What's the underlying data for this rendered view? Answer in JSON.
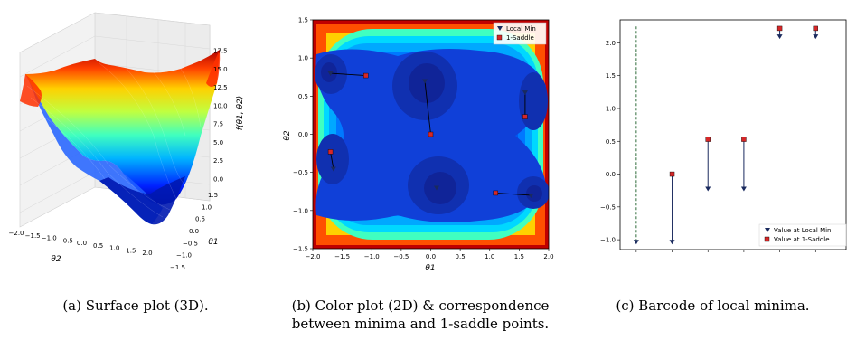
{
  "colors": {
    "minimum": "#1a2a5e",
    "saddle": "#d62728",
    "dashed": "#2e6b3a"
  },
  "captions": {
    "a": "(a) Surface plot (3D).",
    "b_line1": "(b) Color plot (2D) & correspondence",
    "b_line2": "between minima and 1-saddle points.",
    "c": "(c) Barcode of local minima."
  },
  "chart_data": [
    {
      "id": "a",
      "type": "surface",
      "title": "",
      "xlabel": "θ2",
      "ylabel": "θ1",
      "zlabel": "f(θ1, θ2)",
      "x_ticks": [
        "−2.0",
        "−1.5",
        "−1.0",
        "−0.5",
        "0.0",
        "0.5",
        "1.0",
        "1.5",
        "2.0"
      ],
      "y_ticks": [
        "−1.5",
        "−1.0",
        "−0.5",
        "0.0",
        "0.5",
        "1.0",
        "1.5"
      ],
      "z_ticks": [
        "0.0",
        "2.5",
        "5.0",
        "7.5",
        "10.0",
        "12.5",
        "15.0",
        "17.5"
      ],
      "zlim": [
        0,
        17.5
      ],
      "colormap": "jet"
    },
    {
      "id": "b",
      "type": "heatmap",
      "title": "",
      "xlabel": "θ1",
      "ylabel": "θ2",
      "xlim": [
        -2.0,
        2.0
      ],
      "ylim": [
        -1.5,
        1.5
      ],
      "x_ticks": [
        "−2.0",
        "−1.5",
        "−1.0",
        "−0.5",
        "0.0",
        "0.5",
        "1.0",
        "1.5",
        "2.0"
      ],
      "y_ticks": [
        "−1.5",
        "−1.0",
        "−0.5",
        "0.0",
        "0.5",
        "1.0",
        "1.5"
      ],
      "colormap": "jet",
      "legend": {
        "position": "top-right",
        "entries": [
          "Local Min",
          "1-Saddle"
        ]
      },
      "local_minima": [
        [
          -1.7,
          0.8
        ],
        [
          -0.1,
          0.7
        ],
        [
          1.6,
          0.55
        ],
        [
          -1.65,
          -0.45
        ],
        [
          0.1,
          -0.7
        ],
        [
          1.7,
          -0.8
        ]
      ],
      "saddles": [
        [
          -1.1,
          0.77
        ],
        [
          0.0,
          0.0
        ],
        [
          1.6,
          0.23
        ],
        [
          -1.7,
          -0.23
        ],
        [
          1.1,
          -0.77
        ]
      ],
      "pairs": [
        [
          0,
          0
        ],
        [
          1,
          1
        ],
        [
          2,
          2
        ],
        [
          3,
          3
        ],
        [
          5,
          4
        ]
      ]
    },
    {
      "id": "c",
      "type": "barcode",
      "title": "",
      "ylim": [
        -1.15,
        2.35
      ],
      "y_ticks": [
        "−1.0",
        "−0.5",
        "0.0",
        "0.5",
        "1.0",
        "1.5",
        "2.0"
      ],
      "legend": {
        "position": "bottom-right",
        "entries": [
          "Value at Local Min",
          "Value at 1-Saddle"
        ]
      },
      "infinite_bar": {
        "min": -1.03,
        "top": 2.25
      },
      "bars": [
        {
          "min": -1.03,
          "saddle": 0.0
        },
        {
          "min": -0.22,
          "saddle": 0.53
        },
        {
          "min": -0.22,
          "saddle": 0.53
        },
        {
          "min": 2.1,
          "saddle": 2.22
        },
        {
          "min": 2.1,
          "saddle": 2.22
        }
      ]
    }
  ]
}
